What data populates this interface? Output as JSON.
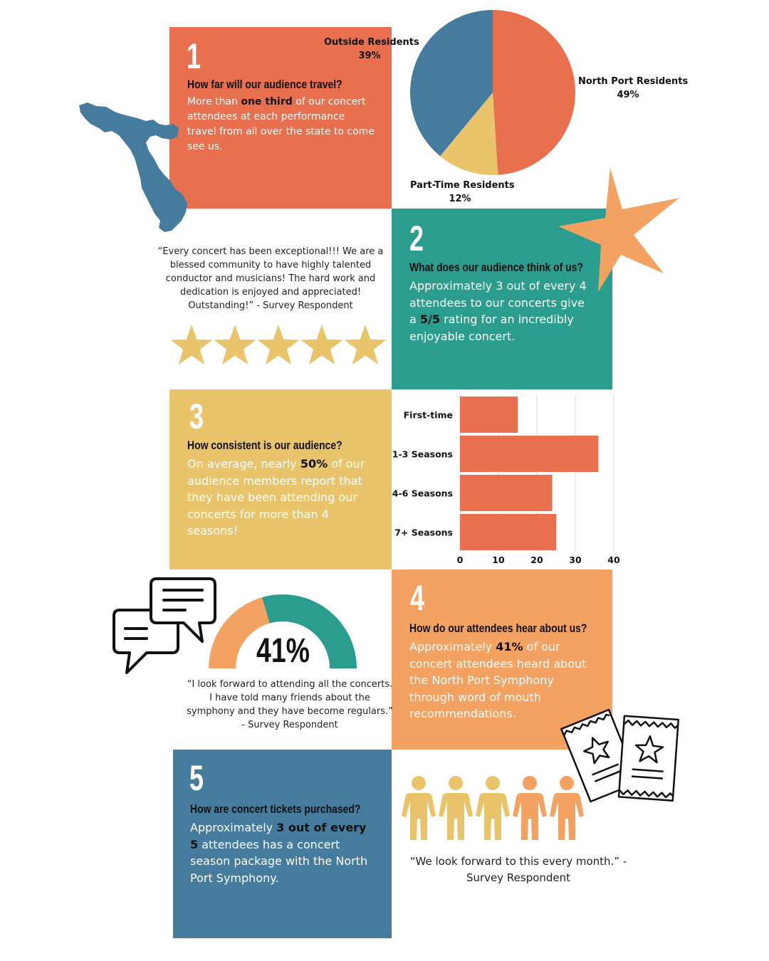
{
  "colors": {
    "coral": "#E8704F",
    "teal": "#2A9D8F",
    "gold": "#E9C46A",
    "orange": "#F4A261",
    "blue": "#457B9D"
  },
  "section1": {
    "number": "1",
    "question": "How far will our audience travel?",
    "body_pre": "More than ",
    "body_bold": "one third",
    "body_post": " of our concert attendees at each performance travel from all over the state to come see us."
  },
  "section2": {
    "number": "2",
    "question": "What does our audience think of us?",
    "body_pre": "Approximately 3 out of every 4 attendees to our concerts give a ",
    "body_bold": "5/5",
    "body_post": " rating for an incredibly enjoyable concert."
  },
  "section3": {
    "number": "3",
    "question": "How consistent is our audience?",
    "body_pre": "On average, nearly ",
    "body_bold": "50%",
    "body_post": " of our audience members report that they have been attending our concerts for more than 4 seasons!"
  },
  "section4": {
    "number": "4",
    "question": "How do our attendees hear about us?",
    "body_pre": "Approximately ",
    "body_bold": "41%",
    "body_post": " of our concert attendees heard about the North Port Symphony through word of mouth recommendations."
  },
  "section5": {
    "number": "5",
    "question": "How are concert tickets purchased?",
    "body_pre": "Approximately ",
    "body_bold": "3 out of every 5",
    "body_post": " attendees has a concert season package with the North Port Symphony."
  },
  "quotes": {
    "q1": "“Every concert has been exceptional!!! We are a blessed community to have highly talented conductor and musicians! The hard work and dedication is enjoyed and appreciated! Outstanding!” - Survey Respondent",
    "q2": "“I look forward to attending all the concerts. I have told many friends about the symphony and they have become regulars.” - Survey Respondent",
    "q3": "“We look forward to this every month.” - Survey Respondent"
  },
  "rating": {
    "stars": 5,
    "max": 5
  },
  "gauge": {
    "label": "41%",
    "value": 0.41
  },
  "people": {
    "highlighted": 3,
    "total": 5
  },
  "chart_data": [
    {
      "type": "pie",
      "slices": [
        {
          "name": "North Port Residents",
          "label": "49%",
          "value": 49,
          "color": "#E8704F"
        },
        {
          "name": "Part-Time Residents",
          "label": "12%",
          "value": 12,
          "color": "#E9C46A"
        },
        {
          "name": "Outside Residents",
          "label": "39%",
          "value": 39,
          "color": "#457B9D"
        }
      ]
    },
    {
      "type": "bar",
      "orientation": "horizontal",
      "categories": [
        "First-time",
        "1-3 Seasons",
        "4-6 Seasons",
        "7+ Seasons"
      ],
      "values": [
        15,
        36,
        24,
        25
      ],
      "xlim": [
        0,
        40
      ],
      "xticks": [
        "0",
        "10",
        "20",
        "30",
        "40"
      ],
      "grid": true,
      "color": "#E8704F"
    }
  ]
}
